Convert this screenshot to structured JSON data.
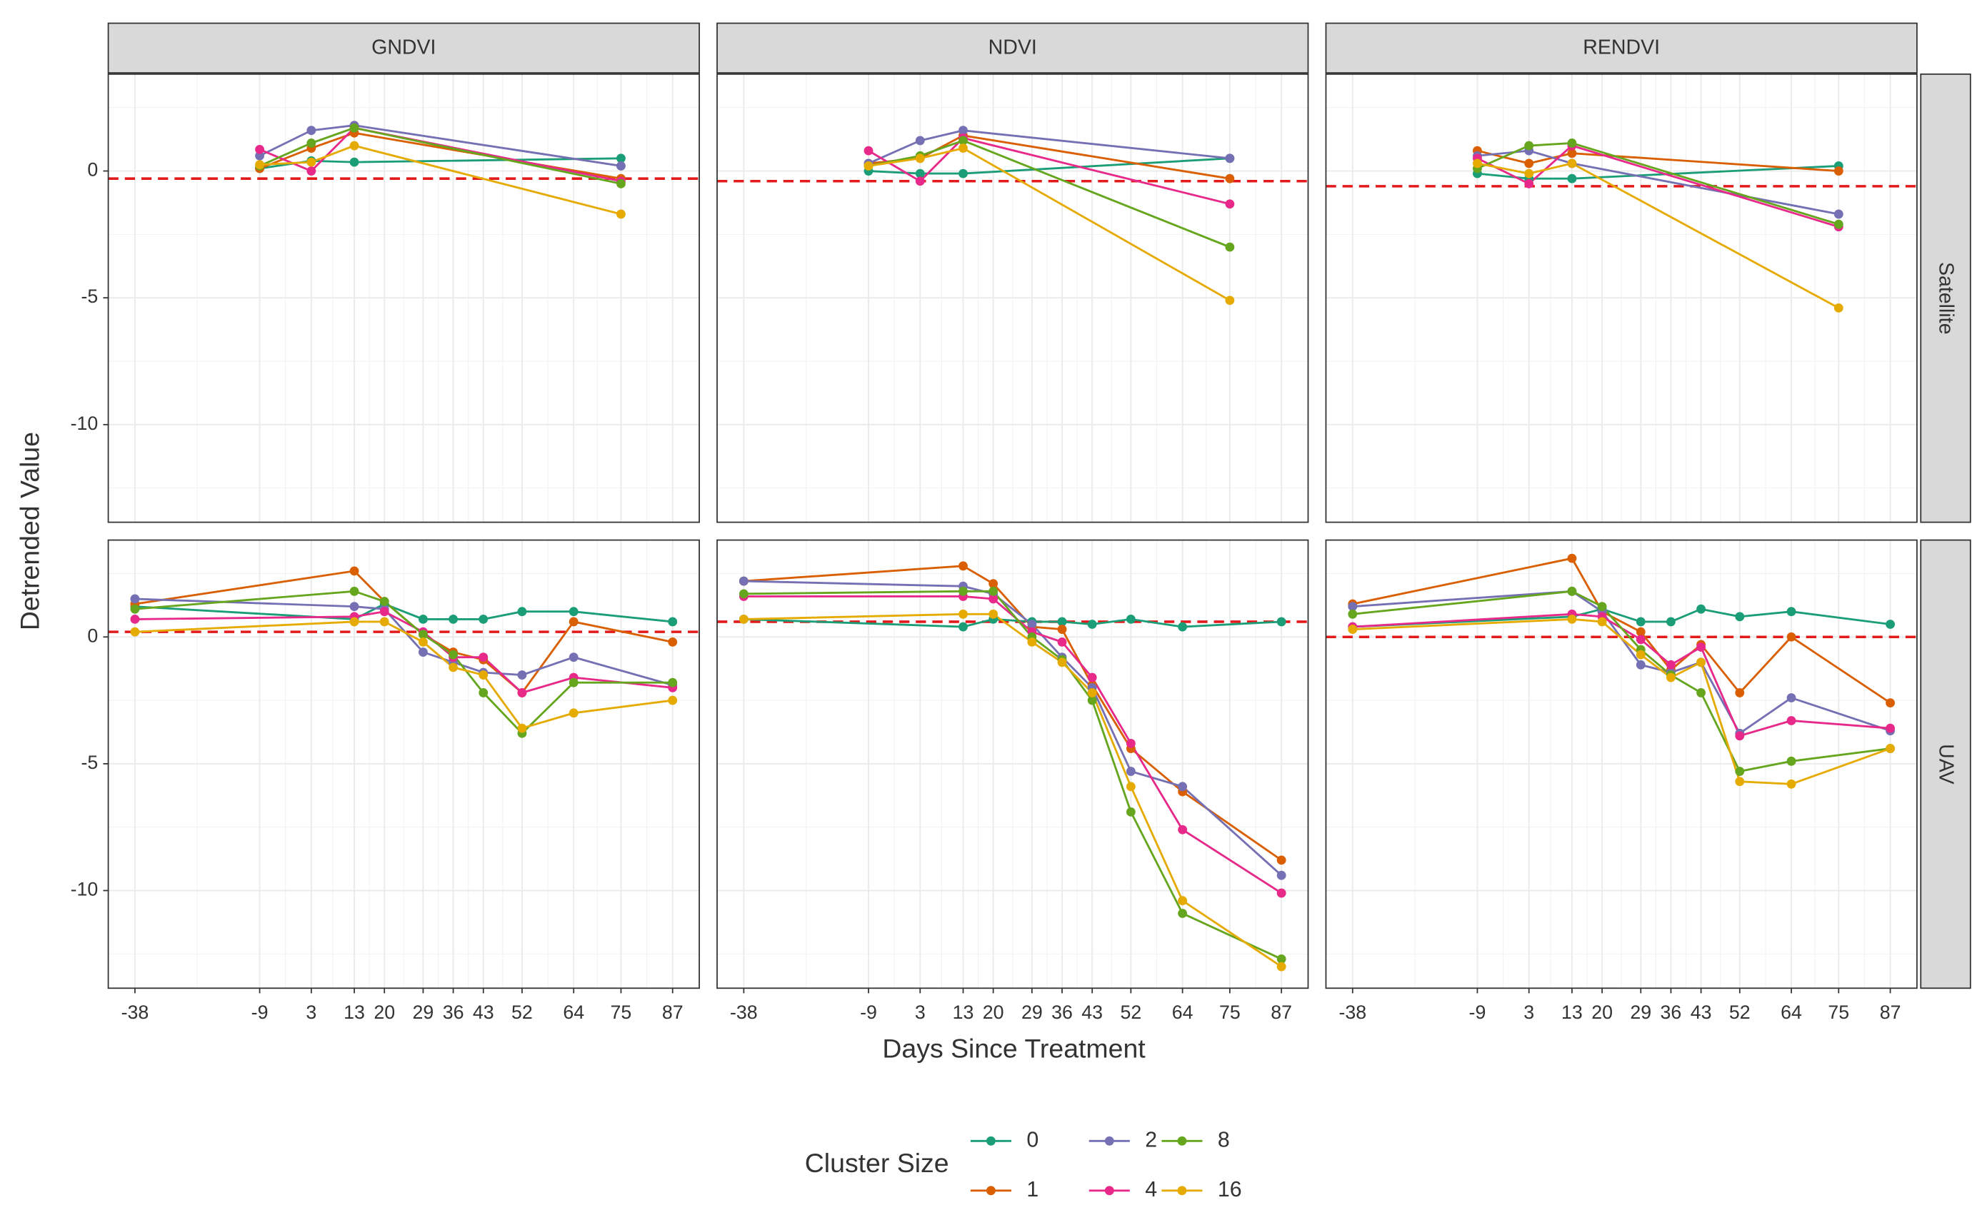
{
  "chart_data": {
    "type": "line",
    "x_label": "Days Since Treatment",
    "y_label": "Detrended Value",
    "legend_title": "Cluster Size",
    "columns": [
      "GNDVI",
      "NDVI",
      "RENDVI"
    ],
    "rows": [
      "Satellite",
      "UAV"
    ],
    "series": [
      {
        "name": "0",
        "color": "#1b9e77"
      },
      {
        "name": "1",
        "color": "#d95f02"
      },
      {
        "name": "2",
        "color": "#7570b3"
      },
      {
        "name": "4",
        "color": "#e7298a"
      },
      {
        "name": "8",
        "color": "#66a61e"
      },
      {
        "name": "16",
        "color": "#e6ab02"
      }
    ],
    "xlim": [
      -44.2,
      93.2
    ],
    "xticks": [
      -38,
      -9,
      3,
      13,
      20,
      29,
      36,
      43,
      52,
      64,
      75,
      87
    ],
    "ylim": [
      -13.85,
      3.82
    ],
    "yticks": [
      -10,
      -5,
      0
    ],
    "grid": true,
    "reference_color": "#e31a1c",
    "panels": [
      {
        "x": [
          -9,
          3,
          13,
          75
        ],
        "reference": -0.3,
        "series": [
          {
            "values": [
              0.1,
              0.4,
              0.35,
              0.5
            ]
          },
          {
            "values": [
              0.1,
              0.9,
              1.5,
              -0.3
            ]
          },
          {
            "values": [
              0.6,
              1.6,
              1.8,
              0.2
            ]
          },
          {
            "values": [
              0.85,
              0.0,
              1.7,
              -0.4
            ]
          },
          {
            "values": [
              0.2,
              1.1,
              1.7,
              -0.5
            ]
          },
          {
            "values": [
              0.25,
              0.35,
              1.0,
              -1.7
            ]
          }
        ]
      },
      {
        "x": [
          -9,
          3,
          13,
          75
        ],
        "reference": -0.4,
        "series": [
          {
            "values": [
              0.0,
              -0.1,
              -0.1,
              0.5
            ]
          },
          {
            "values": [
              0.3,
              0.5,
              1.4,
              -0.3
            ]
          },
          {
            "values": [
              0.3,
              1.2,
              1.6,
              0.5
            ]
          },
          {
            "values": [
              0.8,
              -0.4,
              1.3,
              -1.3
            ]
          },
          {
            "values": [
              0.2,
              0.6,
              1.2,
              -3.0
            ]
          },
          {
            "values": [
              0.2,
              0.5,
              0.9,
              -5.1
            ]
          }
        ]
      },
      {
        "x": [
          -9,
          3,
          13,
          75
        ],
        "reference": -0.6,
        "series": [
          {
            "values": [
              -0.1,
              -0.3,
              -0.3,
              0.2
            ]
          },
          {
            "values": [
              0.8,
              0.3,
              0.7,
              0.0
            ]
          },
          {
            "values": [
              0.6,
              0.8,
              0.3,
              -1.7
            ]
          },
          {
            "values": [
              0.5,
              -0.5,
              1.0,
              -2.2
            ]
          },
          {
            "values": [
              0.1,
              1.0,
              1.1,
              -2.1
            ]
          },
          {
            "values": [
              0.3,
              -0.1,
              0.3,
              -5.4
            ]
          }
        ]
      },
      {
        "x": [
          -38,
          13,
          20,
          29,
          36,
          43,
          52,
          64,
          87
        ],
        "reference": 0.2,
        "series": [
          {
            "values": [
              1.2,
              0.7,
              1.3,
              0.7,
              0.7,
              0.7,
              1.0,
              1.0,
              0.6
            ]
          },
          {
            "values": [
              1.3,
              2.6,
              1.4,
              0.1,
              -0.6,
              -0.9,
              -2.2,
              0.6,
              -0.2
            ]
          },
          {
            "values": [
              1.5,
              1.2,
              1.1,
              -0.6,
              -1.0,
              -1.4,
              -1.5,
              -0.8,
              -1.9
            ]
          },
          {
            "values": [
              0.7,
              0.8,
              1.0,
              0.2,
              -0.8,
              -0.8,
              -2.2,
              -1.6,
              -2.0
            ]
          },
          {
            "values": [
              1.1,
              1.8,
              1.4,
              0.1,
              -0.7,
              -2.2,
              -3.8,
              -1.8,
              -1.8
            ]
          },
          {
            "values": [
              0.2,
              0.6,
              0.6,
              -0.2,
              -1.2,
              -1.5,
              -3.6,
              -3.0,
              -2.5
            ]
          }
        ]
      },
      {
        "x": [
          -38,
          13,
          20,
          29,
          36,
          43,
          52,
          64,
          87
        ],
        "reference": 0.6,
        "series": [
          {
            "values": [
              0.7,
              0.4,
              0.7,
              0.6,
              0.6,
              0.5,
              0.7,
              0.4,
              0.6
            ]
          },
          {
            "values": [
              2.2,
              2.8,
              2.1,
              0.4,
              0.3,
              -1.9,
              -4.4,
              -6.1,
              -8.8
            ]
          },
          {
            "values": [
              2.2,
              2.0,
              1.7,
              0.5,
              -0.8,
              -2.0,
              -5.3,
              -5.9,
              -9.4
            ]
          },
          {
            "values": [
              1.6,
              1.6,
              1.5,
              0.2,
              -0.2,
              -1.6,
              -4.2,
              -7.6,
              -10.1
            ]
          },
          {
            "values": [
              1.7,
              1.8,
              1.8,
              0.0,
              -0.9,
              -2.5,
              -6.9,
              -10.9,
              -12.7
            ]
          },
          {
            "values": [
              0.7,
              0.9,
              0.9,
              -0.2,
              -1.0,
              -2.2,
              -5.9,
              -10.4,
              -13.0
            ]
          }
        ]
      },
      {
        "x": [
          -38,
          13,
          20,
          29,
          36,
          43,
          52,
          64,
          87
        ],
        "reference": 0.0,
        "series": [
          {
            "values": [
              0.4,
              0.8,
              1.1,
              0.6,
              0.6,
              1.1,
              0.8,
              1.0,
              0.5
            ]
          },
          {
            "values": [
              1.3,
              3.1,
              1.0,
              0.2,
              -1.3,
              -0.3,
              -2.2,
              0.0,
              -2.6
            ]
          },
          {
            "values": [
              1.2,
              1.8,
              1.0,
              -1.1,
              -1.4,
              -1.0,
              -3.8,
              -2.4,
              -3.7
            ]
          },
          {
            "values": [
              0.4,
              0.9,
              0.8,
              -0.1,
              -1.1,
              -0.4,
              -3.9,
              -3.3,
              -3.6
            ]
          },
          {
            "values": [
              0.9,
              1.8,
              1.2,
              -0.5,
              -1.5,
              -2.2,
              -5.3,
              -4.9,
              -4.4
            ]
          },
          {
            "values": [
              0.3,
              0.7,
              0.6,
              -0.7,
              -1.6,
              -1.0,
              -5.7,
              -5.8,
              -4.4
            ]
          }
        ]
      }
    ]
  }
}
